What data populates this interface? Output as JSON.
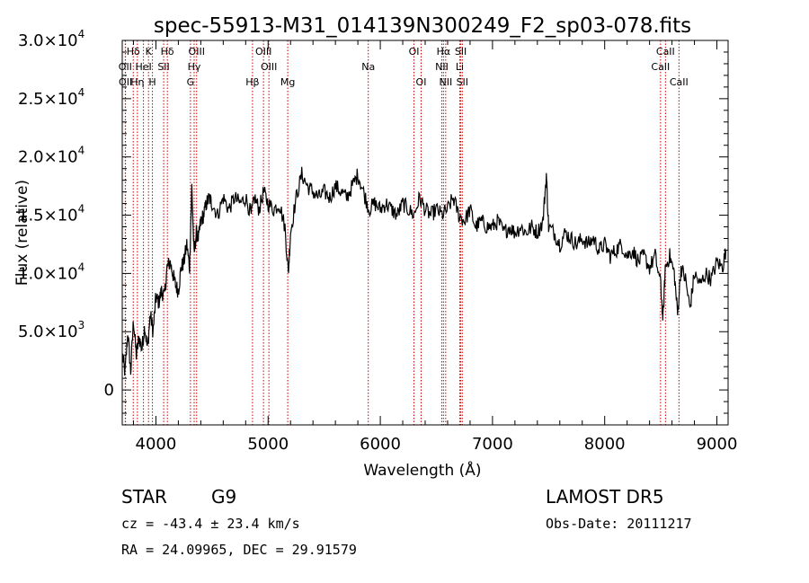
{
  "chart_data": {
    "type": "line",
    "title": "spec-55913-M31_014139N300249_F2_sp03-078.fits",
    "xlabel": "Wavelength (Å)",
    "ylabel": "Flux (relative)",
    "xlim": [
      3700,
      9100
    ],
    "ylim": [
      -3000,
      30000
    ],
    "xticks": [
      {
        "value": 4000,
        "label": "4000"
      },
      {
        "value": 5000,
        "label": "5000"
      },
      {
        "value": 6000,
        "label": "6000"
      },
      {
        "value": 7000,
        "label": "7000"
      },
      {
        "value": 8000,
        "label": "8000"
      },
      {
        "value": 9000,
        "label": "9000"
      }
    ],
    "yticks": [
      {
        "value": 0,
        "mant": "0",
        "exp": ""
      },
      {
        "value": 5000,
        "mant": "5.0×10",
        "exp": "3"
      },
      {
        "value": 10000,
        "mant": "1.0×10",
        "exp": "4"
      },
      {
        "value": 15000,
        "mant": "1.5×10",
        "exp": "4"
      },
      {
        "value": 20000,
        "mant": "2.0×10",
        "exp": "4"
      },
      {
        "value": 25000,
        "mant": "2.5×10",
        "exp": "4"
      },
      {
        "value": 30000,
        "mant": "3.0×10",
        "exp": "4"
      }
    ],
    "line_color": "#000000",
    "marker_color": "#cc0000",
    "spectral_lines": [
      {
        "label": "Hδ",
        "wavelength": 3798,
        "row": 0
      },
      {
        "label": "OII",
        "wavelength": 3727,
        "row": 1
      },
      {
        "label": "OII",
        "wavelength": 3729,
        "row": 2
      },
      {
        "label": "K",
        "wavelength": 3934,
        "row": 0
      },
      {
        "label": "HeI",
        "wavelength": 3889,
        "row": 1
      },
      {
        "label": "Hη",
        "wavelength": 3835,
        "row": 2
      },
      {
        "label": "H",
        "wavelength": 3969,
        "row": 2
      },
      {
        "label": "Hδ",
        "wavelength": 4102,
        "row": 0
      },
      {
        "label": "SII",
        "wavelength": 4069,
        "row": 1
      },
      {
        "label": "OIII",
        "wavelength": 4363,
        "row": 0
      },
      {
        "label": "Hγ",
        "wavelength": 4341,
        "row": 1
      },
      {
        "label": "G",
        "wavelength": 4308,
        "row": 2
      },
      {
        "label": "OIII",
        "wavelength": 4959,
        "row": 0
      },
      {
        "label": "OIII",
        "wavelength": 5007,
        "row": 1
      },
      {
        "label": "Hβ",
        "wavelength": 4861,
        "row": 2
      },
      {
        "label": "Mg",
        "wavelength": 5175,
        "row": 2
      },
      {
        "label": "Na",
        "wavelength": 5893,
        "row": 1
      },
      {
        "label": "OI",
        "wavelength": 6300,
        "row": 0
      },
      {
        "label": "OI",
        "wavelength": 6364,
        "row": 2
      },
      {
        "label": "Hα",
        "wavelength": 6563,
        "row": 0
      },
      {
        "label": "NII",
        "wavelength": 6548,
        "row": 1
      },
      {
        "label": "NII",
        "wavelength": 6583,
        "row": 2
      },
      {
        "label": "SII",
        "wavelength": 6717,
        "row": 0
      },
      {
        "label": "Li",
        "wavelength": 6708,
        "row": 1
      },
      {
        "label": "SII",
        "wavelength": 6731,
        "row": 2
      },
      {
        "label": "CaII",
        "wavelength": 8542,
        "row": 0
      },
      {
        "label": "CaII",
        "wavelength": 8498,
        "row": 1
      },
      {
        "label": "CaII",
        "wavelength": 8662,
        "row": 2
      }
    ],
    "series": [
      {
        "color": "#000000",
        "points": [
          [
            3700,
            3000
          ],
          [
            3725,
            1500
          ],
          [
            3750,
            5000
          ],
          [
            3775,
            1500
          ],
          [
            3800,
            6000
          ],
          [
            3825,
            3000
          ],
          [
            3850,
            4500
          ],
          [
            3875,
            3500
          ],
          [
            3900,
            5500
          ],
          [
            3925,
            3500
          ],
          [
            3950,
            6500
          ],
          [
            3975,
            5000
          ],
          [
            4000,
            8000
          ],
          [
            4025,
            7500
          ],
          [
            4050,
            8500
          ],
          [
            4075,
            8000
          ],
          [
            4100,
            10500
          ],
          [
            4125,
            11000
          ],
          [
            4150,
            10000
          ],
          [
            4175,
            9000
          ],
          [
            4200,
            8500
          ],
          [
            4225,
            10500
          ],
          [
            4250,
            11000
          ],
          [
            4275,
            12500
          ],
          [
            4300,
            10500
          ],
          [
            4320,
            17500
          ],
          [
            4340,
            11500
          ],
          [
            4360,
            13500
          ],
          [
            4380,
            13000
          ],
          [
            4400,
            14500
          ],
          [
            4425,
            15000
          ],
          [
            4450,
            16000
          ],
          [
            4475,
            16500
          ],
          [
            4500,
            16000
          ],
          [
            4550,
            15000
          ],
          [
            4600,
            16500
          ],
          [
            4650,
            15500
          ],
          [
            4700,
            16500
          ],
          [
            4750,
            16000
          ],
          [
            4800,
            16500
          ],
          [
            4850,
            15000
          ],
          [
            4880,
            16500
          ],
          [
            4920,
            15500
          ],
          [
            4960,
            17000
          ],
          [
            5000,
            16000
          ],
          [
            5050,
            15500
          ],
          [
            5100,
            16000
          ],
          [
            5150,
            14000
          ],
          [
            5180,
            10000
          ],
          [
            5200,
            13500
          ],
          [
            5250,
            16500
          ],
          [
            5300,
            18500
          ],
          [
            5350,
            17500
          ],
          [
            5400,
            17000
          ],
          [
            5450,
            16500
          ],
          [
            5500,
            17000
          ],
          [
            5550,
            16500
          ],
          [
            5600,
            17500
          ],
          [
            5650,
            17000
          ],
          [
            5700,
            16500
          ],
          [
            5750,
            17500
          ],
          [
            5800,
            18500
          ],
          [
            5850,
            17000
          ],
          [
            5900,
            15500
          ],
          [
            5950,
            16000
          ],
          [
            6000,
            15500
          ],
          [
            6050,
            16000
          ],
          [
            6100,
            15500
          ],
          [
            6150,
            15000
          ],
          [
            6200,
            16000
          ],
          [
            6250,
            15500
          ],
          [
            6300,
            15000
          ],
          [
            6350,
            16500
          ],
          [
            6400,
            15500
          ],
          [
            6450,
            15000
          ],
          [
            6500,
            15500
          ],
          [
            6550,
            15000
          ],
          [
            6600,
            15500
          ],
          [
            6650,
            16500
          ],
          [
            6700,
            15000
          ],
          [
            6750,
            14500
          ],
          [
            6800,
            15500
          ],
          [
            6850,
            14000
          ],
          [
            6900,
            14500
          ],
          [
            6950,
            14000
          ],
          [
            7000,
            14000
          ],
          [
            7050,
            14500
          ],
          [
            7100,
            13500
          ],
          [
            7150,
            14000
          ],
          [
            7200,
            13500
          ],
          [
            7250,
            14000
          ],
          [
            7300,
            13500
          ],
          [
            7350,
            14000
          ],
          [
            7400,
            13500
          ],
          [
            7450,
            14500
          ],
          [
            7480,
            18500
          ],
          [
            7500,
            14000
          ],
          [
            7550,
            13500
          ],
          [
            7600,
            12500
          ],
          [
            7650,
            13500
          ],
          [
            7700,
            13000
          ],
          [
            7750,
            12500
          ],
          [
            7800,
            13000
          ],
          [
            7850,
            12500
          ],
          [
            7900,
            13000
          ],
          [
            7950,
            12000
          ],
          [
            8000,
            12500
          ],
          [
            8050,
            11500
          ],
          [
            8100,
            12000
          ],
          [
            8150,
            12500
          ],
          [
            8200,
            11500
          ],
          [
            8250,
            12000
          ],
          [
            8300,
            11000
          ],
          [
            8350,
            11500
          ],
          [
            8400,
            10500
          ],
          [
            8450,
            11500
          ],
          [
            8500,
            9000
          ],
          [
            8520,
            6000
          ],
          [
            8540,
            10500
          ],
          [
            8580,
            11500
          ],
          [
            8620,
            10000
          ],
          [
            8650,
            6500
          ],
          [
            8680,
            10500
          ],
          [
            8720,
            9500
          ],
          [
            8760,
            7000
          ],
          [
            8800,
            10000
          ],
          [
            8850,
            9000
          ],
          [
            8900,
            10000
          ],
          [
            8950,
            9500
          ],
          [
            9000,
            11000
          ],
          [
            9050,
            10500
          ],
          [
            9080,
            12000
          ]
        ]
      }
    ]
  },
  "info": {
    "object": "STAR",
    "subclass": "G9",
    "survey": "LAMOST  DR5",
    "cz_line": "cz = -43.4 ± 23.4 km/s",
    "obs_date": "Obs-Date: 20111217",
    "coords": "RA =  24.09965, DEC =  29.91579"
  }
}
